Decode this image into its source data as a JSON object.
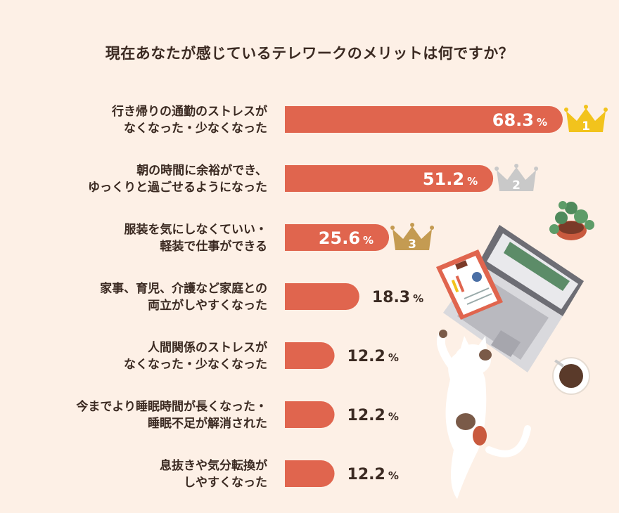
{
  "title": "現在あなたが感じているテレワークのメリットは何ですか？",
  "colors": {
    "bar": "#e0654e",
    "background": "#fdf0e6",
    "text": "#3b2a22",
    "gold": "#f2c31c",
    "silver": "#c9c9c9",
    "bronze": "#c49b52"
  },
  "chart_data": {
    "type": "bar",
    "orientation": "horizontal",
    "categories": [
      [
        "行き帰りの通勤のストレスが",
        "なくなった・少なくなった"
      ],
      [
        "朝の時間に余裕ができ、",
        "ゆっくりと過ごせるようになった"
      ],
      [
        "服装を気にしなくていい・",
        "軽装で仕事ができる"
      ],
      [
        "家事、育児、介護など家庭との",
        "両立がしやすくなった"
      ],
      [
        "人間関係のストレスが",
        "なくなった・少なくなった"
      ],
      [
        "今までより睡眠時間が長くなった・",
        "睡眠不足が解消された"
      ],
      [
        "息抜きや気分転換が",
        "しやすくなった"
      ]
    ],
    "values": [
      68.3,
      51.2,
      25.6,
      18.3,
      12.2,
      12.2,
      12.2
    ],
    "value_labels": [
      "68.3",
      "51.2",
      "25.6",
      "18.3",
      "12.2",
      "12.2",
      "12.2"
    ],
    "unit": "%",
    "ranks": [
      "1",
      "2",
      "3"
    ]
  }
}
